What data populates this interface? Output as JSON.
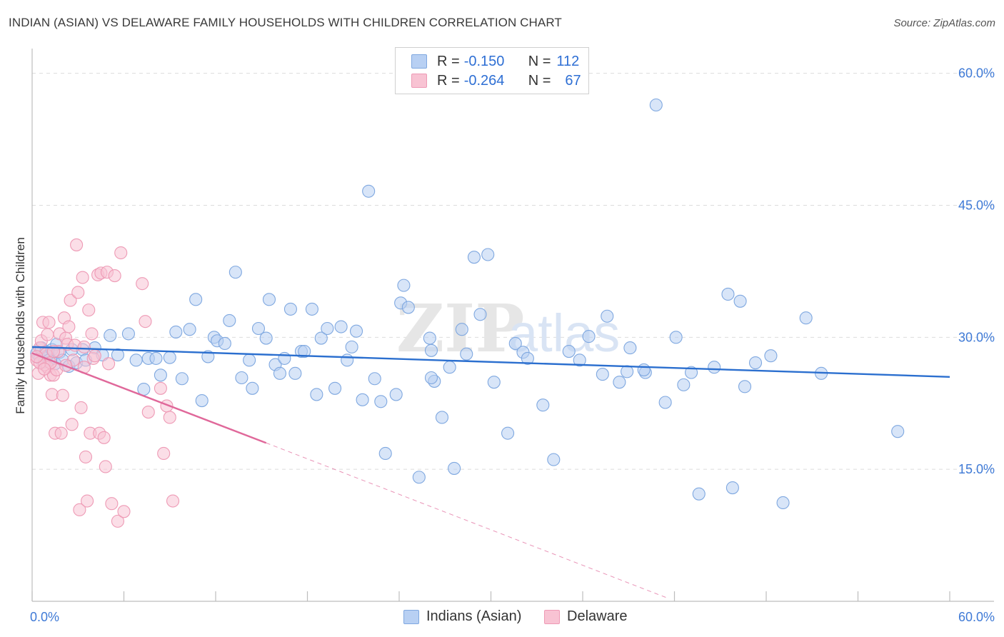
{
  "header": {
    "title": "INDIAN (ASIAN) VS DELAWARE FAMILY HOUSEHOLDS WITH CHILDREN CORRELATION CHART",
    "source": "Source: ZipAtlas.com"
  },
  "legend_top": [
    {
      "r_label": "R =",
      "r_value": "-0.150",
      "n_label": "N =",
      "n_value": "112"
    },
    {
      "r_label": "R =",
      "r_value": "-0.264",
      "n_label": "N =",
      "n_value": "67"
    }
  ],
  "legend_bottom": [
    {
      "label": "Indians (Asian)"
    },
    {
      "label": "Delaware"
    }
  ],
  "watermark": {
    "zip": "ZIP",
    "atlas": "atlas"
  },
  "colors": {
    "blue_fill": "#b8d0f3",
    "blue_stroke": "#7fa8e0",
    "blue_line": "#2b6fcf",
    "pink_fill": "#f8c3d3",
    "pink_stroke": "#ee9ab5",
    "pink_line": "#e0689a",
    "tick_text": "#3f7ad6",
    "grid": "#dcdcdc"
  },
  "chart_data": {
    "type": "scatter",
    "title": "INDIAN (ASIAN) VS DELAWARE FAMILY HOUSEHOLDS WITH CHILDREN CORRELATION CHART",
    "xlabel": "",
    "ylabel": "Family Households with Children",
    "xlim": [
      0,
      60
    ],
    "ylim": [
      0,
      62
    ],
    "x_tick_labels": [
      {
        "value": 0,
        "label": "0.0%"
      },
      {
        "value": 60,
        "label": "60.0%"
      }
    ],
    "y_tick_labels": [
      {
        "value": 15,
        "label": "15.0%"
      },
      {
        "value": 30,
        "label": "30.0%"
      },
      {
        "value": 45,
        "label": "45.0%"
      },
      {
        "value": 60,
        "label": "60.0%"
      }
    ],
    "x_minor_ticks": [
      0,
      6,
      12,
      18,
      24,
      30,
      36,
      42,
      48,
      54,
      60
    ],
    "grid_y": [
      15,
      30,
      45,
      60
    ],
    "series": [
      {
        "name": "Indians (Asian)",
        "color": "#b8d0f3",
        "trend": {
          "x": [
            0,
            60
          ],
          "y": [
            28.9,
            25.5
          ],
          "style": "solid"
        },
        "points": [
          [
            0.3,
            28.2
          ],
          [
            0.5,
            27.6
          ],
          [
            0.6,
            28.8
          ],
          [
            0.8,
            27.2
          ],
          [
            0.9,
            28.4
          ],
          [
            1.0,
            27.9
          ],
          [
            1.1,
            27.4
          ],
          [
            1.3,
            28.6
          ],
          [
            1.5,
            27.0
          ],
          [
            1.6,
            29.2
          ],
          [
            1.8,
            28.3
          ],
          [
            2.0,
            27.4
          ],
          [
            2.4,
            26.7
          ],
          [
            2.6,
            28.6
          ],
          [
            2.9,
            27.1
          ],
          [
            3.3,
            28.6
          ],
          [
            3.5,
            27.4
          ],
          [
            4.1,
            28.8
          ],
          [
            4.6,
            28.0
          ],
          [
            5.1,
            30.2
          ],
          [
            5.6,
            28.0
          ],
          [
            6.3,
            30.4
          ],
          [
            6.8,
            27.4
          ],
          [
            7.3,
            24.1
          ],
          [
            7.6,
            27.6
          ],
          [
            8.1,
            27.6
          ],
          [
            8.4,
            25.7
          ],
          [
            9.0,
            27.7
          ],
          [
            9.4,
            30.6
          ],
          [
            9.8,
            25.3
          ],
          [
            10.3,
            30.9
          ],
          [
            10.7,
            34.3
          ],
          [
            11.1,
            22.8
          ],
          [
            11.5,
            27.8
          ],
          [
            11.9,
            30.0
          ],
          [
            12.1,
            29.6
          ],
          [
            12.6,
            29.3
          ],
          [
            12.9,
            31.9
          ],
          [
            13.3,
            37.4
          ],
          [
            13.7,
            25.4
          ],
          [
            14.2,
            27.4
          ],
          [
            14.4,
            24.2
          ],
          [
            14.8,
            31.0
          ],
          [
            15.3,
            29.9
          ],
          [
            15.5,
            34.3
          ],
          [
            15.9,
            26.9
          ],
          [
            16.2,
            25.9
          ],
          [
            16.5,
            27.6
          ],
          [
            16.9,
            33.2
          ],
          [
            17.2,
            25.9
          ],
          [
            17.6,
            28.4
          ],
          [
            17.8,
            28.4
          ],
          [
            18.3,
            33.2
          ],
          [
            18.6,
            23.5
          ],
          [
            18.9,
            29.9
          ],
          [
            19.3,
            31.0
          ],
          [
            19.8,
            24.2
          ],
          [
            20.2,
            31.2
          ],
          [
            20.6,
            27.4
          ],
          [
            20.9,
            28.9
          ],
          [
            21.2,
            30.7
          ],
          [
            21.6,
            22.9
          ],
          [
            22.0,
            46.6
          ],
          [
            22.4,
            25.3
          ],
          [
            22.8,
            22.7
          ],
          [
            23.1,
            16.8
          ],
          [
            23.8,
            23.5
          ],
          [
            24.1,
            33.9
          ],
          [
            24.3,
            35.9
          ],
          [
            24.6,
            33.4
          ],
          [
            25.3,
            14.1
          ],
          [
            26.0,
            29.9
          ],
          [
            26.1,
            28.5
          ],
          [
            26.3,
            25.0
          ],
          [
            26.8,
            20.9
          ],
          [
            27.3,
            26.6
          ],
          [
            27.6,
            15.1
          ],
          [
            28.1,
            30.9
          ],
          [
            28.4,
            28.1
          ],
          [
            28.9,
            39.1
          ],
          [
            29.3,
            32.6
          ],
          [
            29.8,
            39.4
          ],
          [
            30.2,
            24.9
          ],
          [
            31.1,
            19.1
          ],
          [
            31.6,
            29.3
          ],
          [
            32.1,
            28.3
          ],
          [
            32.4,
            27.6
          ],
          [
            33.4,
            22.3
          ],
          [
            34.1,
            16.1
          ],
          [
            35.1,
            28.4
          ],
          [
            35.8,
            27.4
          ],
          [
            36.4,
            30.1
          ],
          [
            37.3,
            25.8
          ],
          [
            37.6,
            32.4
          ],
          [
            38.4,
            24.9
          ],
          [
            39.1,
            28.8
          ],
          [
            40.1,
            26.0
          ],
          [
            40.8,
            56.4
          ],
          [
            41.4,
            22.6
          ],
          [
            42.1,
            30.0
          ],
          [
            42.6,
            24.6
          ],
          [
            43.1,
            26.0
          ],
          [
            43.6,
            12.2
          ],
          [
            44.6,
            26.6
          ],
          [
            45.5,
            34.9
          ],
          [
            45.8,
            12.9
          ],
          [
            46.3,
            34.1
          ],
          [
            46.6,
            24.4
          ],
          [
            47.3,
            27.1
          ],
          [
            48.3,
            27.9
          ],
          [
            49.1,
            11.2
          ],
          [
            50.6,
            32.2
          ],
          [
            51.6,
            25.9
          ],
          [
            56.6,
            19.3
          ],
          [
            38.9,
            26.1
          ],
          [
            40.0,
            26.3
          ],
          [
            26.1,
            25.4
          ]
        ]
      },
      {
        "name": "Delaware",
        "color": "#f8c3d3",
        "trend": {
          "x": [
            0,
            15.3
          ],
          "y": [
            28.2,
            18.0
          ],
          "style": "solid",
          "dashed_extension": {
            "x": [
              15.3,
              41.5
            ],
            "y": [
              18.0,
              0.4
            ]
          }
        },
        "points": [
          [
            0.3,
            27.4
          ],
          [
            0.4,
            25.9
          ],
          [
            0.5,
            28.8
          ],
          [
            0.6,
            29.6
          ],
          [
            0.7,
            31.7
          ],
          [
            0.8,
            26.9
          ],
          [
            0.9,
            28.1
          ],
          [
            1.0,
            26.6
          ],
          [
            1.1,
            31.7
          ],
          [
            1.2,
            25.7
          ],
          [
            1.3,
            23.5
          ],
          [
            1.4,
            25.7
          ],
          [
            1.5,
            19.1
          ],
          [
            1.6,
            26.3
          ],
          [
            1.7,
            28.4
          ],
          [
            1.8,
            30.4
          ],
          [
            1.9,
            19.1
          ],
          [
            2.0,
            23.4
          ],
          [
            2.1,
            32.2
          ],
          [
            2.2,
            29.9
          ],
          [
            2.3,
            29.2
          ],
          [
            2.4,
            31.2
          ],
          [
            2.5,
            34.2
          ],
          [
            2.6,
            20.1
          ],
          [
            2.7,
            27.4
          ],
          [
            2.8,
            29.1
          ],
          [
            2.9,
            40.5
          ],
          [
            3.0,
            35.1
          ],
          [
            3.1,
            10.4
          ],
          [
            3.2,
            22.0
          ],
          [
            3.3,
            36.8
          ],
          [
            3.4,
            26.6
          ],
          [
            3.5,
            16.4
          ],
          [
            3.6,
            11.4
          ],
          [
            3.7,
            33.1
          ],
          [
            3.8,
            19.1
          ],
          [
            3.9,
            30.4
          ],
          [
            4.0,
            27.6
          ],
          [
            4.1,
            27.9
          ],
          [
            4.3,
            37.1
          ],
          [
            4.4,
            19.1
          ],
          [
            4.5,
            37.3
          ],
          [
            4.7,
            18.6
          ],
          [
            4.8,
            15.3
          ],
          [
            4.9,
            37.4
          ],
          [
            5.0,
            27.0
          ],
          [
            5.2,
            11.1
          ],
          [
            5.4,
            37.0
          ],
          [
            5.6,
            9.1
          ],
          [
            5.8,
            39.6
          ],
          [
            6.0,
            10.2
          ],
          [
            7.2,
            36.1
          ],
          [
            7.4,
            31.8
          ],
          [
            7.6,
            21.5
          ],
          [
            8.4,
            24.2
          ],
          [
            8.6,
            16.8
          ],
          [
            8.8,
            22.2
          ],
          [
            9.0,
            20.9
          ],
          [
            9.2,
            11.4
          ],
          [
            1.2,
            27.1
          ],
          [
            1.4,
            28.4
          ],
          [
            0.5,
            27.1
          ],
          [
            0.8,
            26.4
          ],
          [
            1.0,
            30.3
          ],
          [
            2.2,
            26.8
          ],
          [
            3.4,
            28.9
          ],
          [
            0.3,
            27.8
          ]
        ]
      }
    ]
  }
}
